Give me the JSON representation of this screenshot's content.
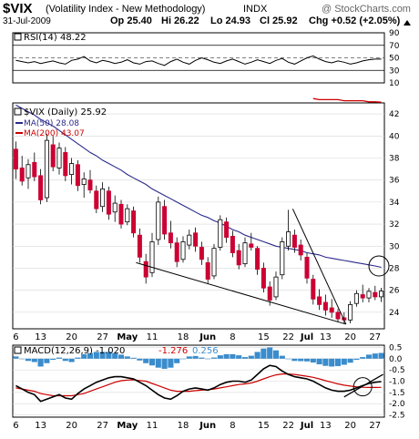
{
  "header": {
    "symbol": "$VIX",
    "name": "(Volatility Index - New Methodology)",
    "exchange": "INDX",
    "watermark": "@ StockCharts.com",
    "date": "31-Jul-2009",
    "open": "Op 25.40",
    "high": "Hi 26.22",
    "low": "Lo 24.93",
    "close": "Cl 25.92",
    "change": "Chg +0.52 (+2.05%)",
    "change_arrow": "triangle-up-icon"
  },
  "colors": {
    "up": "#ffffff",
    "down": "#cc0033",
    "ma50": "#2a2a8c",
    "ma200": "#cc0000",
    "macd_line": "#000000",
    "signal_line": "#cc0000",
    "histogram": "#3a8ccc",
    "rsi_line": "#000000",
    "grid": "#d8d8d8",
    "annotation": "#000000"
  },
  "chart_data": [
    {
      "type": "line",
      "panel": "rsi",
      "legend": "RSI(14) 48.22",
      "y_ticks": [
        90,
        70,
        50,
        30,
        10
      ],
      "ylim": [
        10,
        90
      ],
      "reference_lines": [
        70,
        50,
        30
      ],
      "values": [
        46,
        44,
        42,
        44,
        41,
        43,
        45,
        42,
        40,
        46,
        48,
        52,
        45,
        42,
        46,
        44,
        41,
        43,
        47,
        42,
        40,
        44,
        45,
        41,
        38,
        44,
        48,
        43,
        40,
        46,
        50,
        47,
        43,
        41,
        45,
        48,
        44,
        40,
        43,
        47,
        44,
        41,
        46,
        49,
        43,
        40,
        45,
        50,
        53,
        48,
        44,
        42,
        45,
        43,
        40,
        42,
        45,
        47,
        48,
        48
      ]
    },
    {
      "type": "candlestick",
      "panel": "price",
      "legend": {
        "price": "$VIX (Daily) 25.92",
        "ma50": "MA(50) 28.08",
        "ma200": "MA(200) 43.07"
      },
      "x_labels": [
        "6",
        "13",
        "20",
        "27",
        "May",
        "11",
        "18",
        "Jun",
        "8",
        "15",
        "22",
        "Jul",
        "13",
        "20",
        "27"
      ],
      "y_ticks": [
        42,
        40,
        38,
        36,
        34,
        32,
        30,
        28,
        26,
        24
      ],
      "ylim": [
        22.5,
        43
      ],
      "candles": [
        {
          "o": 38.8,
          "h": 39.5,
          "l": 36.1,
          "c": 37.0
        },
        {
          "o": 37.1,
          "h": 38.2,
          "l": 35.5,
          "c": 35.9
        },
        {
          "o": 36.2,
          "h": 37.9,
          "l": 35.2,
          "c": 37.4
        },
        {
          "o": 37.6,
          "h": 38.5,
          "l": 35.9,
          "c": 36.3
        },
        {
          "o": 36.4,
          "h": 37.0,
          "l": 33.8,
          "c": 34.2
        },
        {
          "o": 34.4,
          "h": 40.2,
          "l": 34.0,
          "c": 39.6
        },
        {
          "o": 39.2,
          "h": 40.0,
          "l": 36.8,
          "c": 37.2
        },
        {
          "o": 37.1,
          "h": 39.4,
          "l": 36.5,
          "c": 38.9
        },
        {
          "o": 38.5,
          "h": 39.0,
          "l": 35.9,
          "c": 36.4
        },
        {
          "o": 36.5,
          "h": 38.0,
          "l": 35.6,
          "c": 37.5
        },
        {
          "o": 37.4,
          "h": 37.8,
          "l": 35.0,
          "c": 35.5
        },
        {
          "o": 35.6,
          "h": 36.7,
          "l": 34.4,
          "c": 36.1
        },
        {
          "o": 36.0,
          "h": 36.9,
          "l": 34.8,
          "c": 35.1
        },
        {
          "o": 35.0,
          "h": 35.5,
          "l": 33.0,
          "c": 33.4
        },
        {
          "o": 33.6,
          "h": 35.8,
          "l": 33.1,
          "c": 35.2
        },
        {
          "o": 35.0,
          "h": 35.4,
          "l": 32.4,
          "c": 32.9
        },
        {
          "o": 33.1,
          "h": 34.6,
          "l": 32.2,
          "c": 33.9
        },
        {
          "o": 33.8,
          "h": 34.2,
          "l": 31.6,
          "c": 32.0
        },
        {
          "o": 32.2,
          "h": 33.8,
          "l": 31.9,
          "c": 33.4
        },
        {
          "o": 33.2,
          "h": 33.6,
          "l": 30.8,
          "c": 31.2
        },
        {
          "o": 31.0,
          "h": 31.6,
          "l": 28.5,
          "c": 29.0
        },
        {
          "o": 28.6,
          "h": 29.3,
          "l": 26.6,
          "c": 27.2
        },
        {
          "o": 27.6,
          "h": 31.2,
          "l": 27.2,
          "c": 30.4
        },
        {
          "o": 30.6,
          "h": 34.5,
          "l": 30.1,
          "c": 34.0
        },
        {
          "o": 33.6,
          "h": 34.2,
          "l": 30.6,
          "c": 31.1
        },
        {
          "o": 31.2,
          "h": 32.3,
          "l": 29.8,
          "c": 30.3
        },
        {
          "o": 30.3,
          "h": 30.8,
          "l": 28.1,
          "c": 28.6
        },
        {
          "o": 28.8,
          "h": 30.9,
          "l": 28.5,
          "c": 30.4
        },
        {
          "o": 30.1,
          "h": 31.5,
          "l": 29.7,
          "c": 31.0
        },
        {
          "o": 31.2,
          "h": 31.7,
          "l": 29.5,
          "c": 30.0
        },
        {
          "o": 29.9,
          "h": 30.4,
          "l": 28.3,
          "c": 28.8
        },
        {
          "o": 28.5,
          "h": 29.0,
          "l": 26.6,
          "c": 27.0
        },
        {
          "o": 27.3,
          "h": 30.2,
          "l": 27.0,
          "c": 29.8
        },
        {
          "o": 29.9,
          "h": 32.8,
          "l": 29.6,
          "c": 32.4
        },
        {
          "o": 32.2,
          "h": 32.6,
          "l": 30.3,
          "c": 30.8
        },
        {
          "o": 30.9,
          "h": 31.4,
          "l": 29.0,
          "c": 29.4
        },
        {
          "o": 29.6,
          "h": 30.2,
          "l": 27.9,
          "c": 28.3
        },
        {
          "o": 28.4,
          "h": 30.8,
          "l": 28.1,
          "c": 30.3
        },
        {
          "o": 30.2,
          "h": 31.2,
          "l": 29.6,
          "c": 29.9
        },
        {
          "o": 29.8,
          "h": 30.0,
          "l": 27.4,
          "c": 27.9
        },
        {
          "o": 28.0,
          "h": 28.5,
          "l": 25.8,
          "c": 26.2
        },
        {
          "o": 26.3,
          "h": 26.8,
          "l": 24.6,
          "c": 25.1
        },
        {
          "o": 25.4,
          "h": 27.7,
          "l": 25.1,
          "c": 27.2
        },
        {
          "o": 27.4,
          "h": 30.8,
          "l": 27.0,
          "c": 30.4
        },
        {
          "o": 30.0,
          "h": 33.3,
          "l": 29.6,
          "c": 31.3
        },
        {
          "o": 31.0,
          "h": 31.5,
          "l": 29.4,
          "c": 29.9
        },
        {
          "o": 30.1,
          "h": 30.6,
          "l": 28.7,
          "c": 29.2
        },
        {
          "o": 29.0,
          "h": 29.4,
          "l": 26.6,
          "c": 27.1
        },
        {
          "o": 27.0,
          "h": 27.4,
          "l": 24.7,
          "c": 25.2
        },
        {
          "o": 25.4,
          "h": 26.1,
          "l": 24.2,
          "c": 24.7
        },
        {
          "o": 24.9,
          "h": 25.6,
          "l": 23.7,
          "c": 24.2
        },
        {
          "o": 24.4,
          "h": 25.2,
          "l": 23.5,
          "c": 24.0
        },
        {
          "o": 24.0,
          "h": 24.3,
          "l": 23.1,
          "c": 23.4
        },
        {
          "o": 23.5,
          "h": 24.0,
          "l": 23.0,
          "c": 23.3
        },
        {
          "o": 23.3,
          "h": 25.0,
          "l": 23.0,
          "c": 24.7
        },
        {
          "o": 24.8,
          "h": 26.0,
          "l": 24.5,
          "c": 25.7
        },
        {
          "o": 25.6,
          "h": 26.5,
          "l": 24.9,
          "c": 25.3
        },
        {
          "o": 25.3,
          "h": 26.2,
          "l": 24.9,
          "c": 25.9
        },
        {
          "o": 25.8,
          "h": 26.4,
          "l": 25.1,
          "c": 25.4
        },
        {
          "o": 25.4,
          "h": 26.22,
          "l": 24.93,
          "c": 25.92
        }
      ],
      "ma50": [
        42.8,
        42.5,
        42.2,
        41.9,
        41.5,
        41.2,
        40.9,
        40.5,
        40.1,
        39.7,
        39.3,
        38.9,
        38.5,
        38.2,
        37.8,
        37.5,
        37.2,
        36.9,
        36.5,
        36.2,
        35.9,
        35.6,
        35.2,
        34.9,
        34.6,
        34.3,
        34.0,
        33.7,
        33.4,
        33.1,
        32.8,
        32.6,
        32.3,
        32.1,
        31.8,
        31.5,
        31.3,
        31.0,
        30.8,
        30.6,
        30.4,
        30.2,
        30.0,
        29.9,
        29.8,
        29.7,
        29.6,
        29.4,
        29.3,
        29.2,
        29.0,
        28.9,
        28.8,
        28.7,
        28.6,
        28.5,
        28.4,
        28.3,
        28.2,
        28.08
      ],
      "ma200_visible": [
        43.4,
        43.3,
        43.3,
        43.3,
        43.3,
        43.2,
        43.2,
        43.2,
        43.2,
        43.1,
        43.1,
        43.07
      ]
    },
    {
      "type": "line",
      "panel": "macd",
      "legend": {
        "macd": "MACD(12,26,9) -1.020",
        "signal": "-1.276",
        "histogram": "0.256"
      },
      "y_ticks": [
        0.5,
        0.0,
        -0.5,
        -1.0,
        -1.5,
        -2.0,
        -2.5
      ],
      "ylim": [
        -2.6,
        0.6
      ],
      "macd": [
        -1.2,
        -1.35,
        -1.5,
        -1.6,
        -1.9,
        -1.8,
        -1.7,
        -1.6,
        -1.75,
        -1.8,
        -1.55,
        -1.35,
        -1.2,
        -1.05,
        -0.95,
        -0.85,
        -0.8,
        -0.8,
        -0.85,
        -0.9,
        -1.05,
        -1.2,
        -1.4,
        -1.6,
        -1.75,
        -1.8,
        -1.65,
        -1.45,
        -1.35,
        -1.3,
        -1.35,
        -1.4,
        -1.3,
        -1.15,
        -1.05,
        -1.0,
        -1.0,
        -1.05,
        -0.95,
        -0.7,
        -0.45,
        -0.3,
        -0.35,
        -0.55,
        -0.7,
        -0.8,
        -0.85,
        -0.9,
        -1.0,
        -1.15,
        -1.3,
        -1.4,
        -1.45,
        -1.45,
        -1.4,
        -1.3,
        -1.2,
        -1.1,
        -1.05,
        -1.02
      ],
      "signal": [
        -1.3,
        -1.35,
        -1.4,
        -1.45,
        -1.55,
        -1.6,
        -1.65,
        -1.65,
        -1.65,
        -1.65,
        -1.6,
        -1.55,
        -1.45,
        -1.35,
        -1.25,
        -1.15,
        -1.05,
        -0.98,
        -0.95,
        -0.94,
        -0.97,
        -1.0,
        -1.1,
        -1.2,
        -1.3,
        -1.4,
        -1.45,
        -1.45,
        -1.45,
        -1.42,
        -1.4,
        -1.38,
        -1.35,
        -1.3,
        -1.25,
        -1.2,
        -1.15,
        -1.12,
        -1.08,
        -1.0,
        -0.9,
        -0.8,
        -0.72,
        -0.68,
        -0.68,
        -0.7,
        -0.74,
        -0.78,
        -0.83,
        -0.9,
        -0.98,
        -1.05,
        -1.12,
        -1.18,
        -1.22,
        -1.25,
        -1.27,
        -1.28,
        -1.28,
        -1.276
      ],
      "histogram": [
        0.1,
        0.0,
        -0.1,
        -0.15,
        -0.35,
        -0.2,
        -0.05,
        0.05,
        -0.1,
        -0.15,
        0.05,
        0.2,
        0.25,
        0.3,
        0.3,
        0.3,
        0.25,
        0.18,
        0.1,
        0.04,
        -0.08,
        -0.2,
        -0.3,
        -0.4,
        -0.45,
        -0.4,
        -0.2,
        0.0,
        0.1,
        0.12,
        0.05,
        -0.02,
        0.05,
        0.15,
        0.2,
        0.2,
        0.15,
        0.07,
        0.13,
        0.3,
        0.45,
        0.5,
        0.37,
        0.13,
        -0.02,
        -0.1,
        -0.11,
        -0.12,
        -0.17,
        -0.25,
        -0.32,
        -0.35,
        -0.33,
        -0.27,
        -0.18,
        -0.05,
        0.07,
        0.18,
        0.23,
        0.256
      ]
    }
  ]
}
